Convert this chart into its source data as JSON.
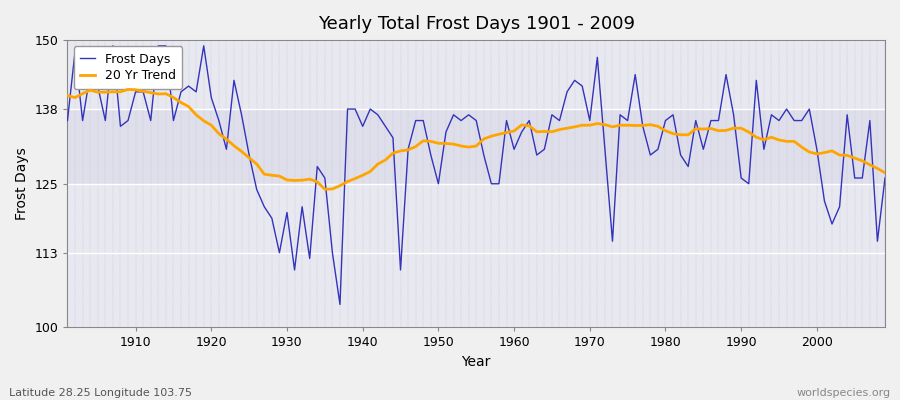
{
  "title": "Yearly Total Frost Days 1901 - 2009",
  "xlabel": "Year",
  "ylabel": "Frost Days",
  "subtitle": "Latitude 28.25 Longitude 103.75",
  "watermark": "worldspecies.org",
  "ylim": [
    100,
    150
  ],
  "yticks": [
    100,
    113,
    125,
    138,
    150
  ],
  "xlim": [
    1901,
    2009
  ],
  "xticks": [
    1910,
    1920,
    1930,
    1940,
    1950,
    1960,
    1970,
    1980,
    1990,
    2000
  ],
  "line_color": "#3333bb",
  "trend_color": "#FFA500",
  "bg_color": "#f0f0f0",
  "plot_bg": "#e8e8f0",
  "years": [
    1901,
    1902,
    1903,
    1904,
    1905,
    1906,
    1907,
    1908,
    1909,
    1910,
    1911,
    1912,
    1913,
    1914,
    1915,
    1916,
    1917,
    1918,
    1919,
    1920,
    1921,
    1922,
    1923,
    1924,
    1925,
    1926,
    1927,
    1928,
    1929,
    1930,
    1931,
    1932,
    1933,
    1934,
    1935,
    1936,
    1937,
    1938,
    1939,
    1940,
    1941,
    1942,
    1943,
    1944,
    1945,
    1946,
    1947,
    1948,
    1949,
    1950,
    1951,
    1952,
    1953,
    1954,
    1955,
    1956,
    1957,
    1958,
    1959,
    1960,
    1961,
    1962,
    1963,
    1964,
    1965,
    1966,
    1967,
    1968,
    1969,
    1970,
    1971,
    1972,
    1973,
    1974,
    1975,
    1976,
    1977,
    1978,
    1979,
    1980,
    1981,
    1982,
    1983,
    1984,
    1985,
    1986,
    1987,
    1988,
    1989,
    1990,
    1991,
    1992,
    1993,
    1994,
    1995,
    1996,
    1997,
    1998,
    1999,
    2000,
    2001,
    2002,
    2003,
    2004,
    2005,
    2006,
    2007,
    2008,
    2009
  ],
  "frost_days": [
    136,
    148,
    136,
    144,
    142,
    136,
    149,
    135,
    136,
    141,
    141,
    136,
    149,
    149,
    136,
    141,
    142,
    141,
    149,
    140,
    136,
    131,
    143,
    137,
    130,
    124,
    121,
    119,
    113,
    120,
    110,
    121,
    112,
    128,
    126,
    113,
    104,
    138,
    138,
    135,
    138,
    137,
    135,
    133,
    110,
    131,
    136,
    136,
    130,
    125,
    134,
    137,
    136,
    137,
    136,
    130,
    125,
    125,
    136,
    131,
    134,
    136,
    130,
    131,
    137,
    136,
    141,
    143,
    142,
    136,
    147,
    131,
    115,
    137,
    136,
    144,
    135,
    130,
    131,
    136,
    137,
    130,
    128,
    136,
    131,
    136,
    136,
    144,
    137,
    126,
    125,
    143,
    131,
    137,
    136,
    138,
    136,
    136,
    138,
    131,
    122,
    118,
    121,
    137,
    126,
    126,
    136,
    115,
    126
  ],
  "legend_loc": "upper left",
  "title_fontsize": 13,
  "axis_fontsize": 10,
  "tick_fontsize": 9,
  "legend_fontsize": 9,
  "subtitle_fontsize": 8,
  "watermark_fontsize": 8
}
